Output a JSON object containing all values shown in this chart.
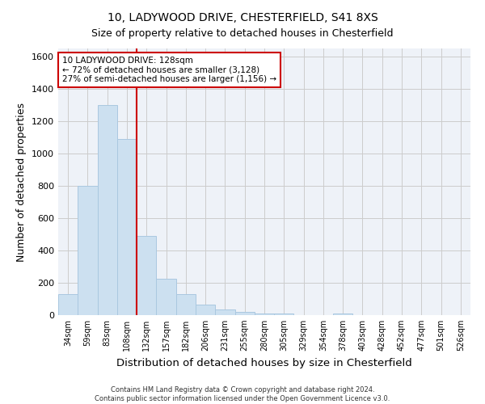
{
  "title_line1": "10, LADYWOOD DRIVE, CHESTERFIELD, S41 8XS",
  "title_line2": "Size of property relative to detached houses in Chesterfield",
  "xlabel": "Distribution of detached houses by size in Chesterfield",
  "ylabel": "Number of detached properties",
  "footnote": "Contains HM Land Registry data © Crown copyright and database right 2024.\nContains public sector information licensed under the Open Government Licence v3.0.",
  "bar_labels": [
    "34sqm",
    "59sqm",
    "83sqm",
    "108sqm",
    "132sqm",
    "157sqm",
    "182sqm",
    "206sqm",
    "231sqm",
    "255sqm",
    "280sqm",
    "305sqm",
    "329sqm",
    "354sqm",
    "378sqm",
    "403sqm",
    "428sqm",
    "452sqm",
    "477sqm",
    "501sqm",
    "526sqm"
  ],
  "bar_values": [
    130,
    800,
    1300,
    1090,
    490,
    225,
    130,
    65,
    35,
    22,
    12,
    12,
    0,
    0,
    12,
    0,
    0,
    0,
    0,
    0,
    0
  ],
  "bar_color": "#cce0f0",
  "bar_edge_color": "#aac8e0",
  "vline_x": 3.5,
  "vline_color": "#cc0000",
  "annotation_text": "10 LADYWOOD DRIVE: 128sqm\n← 72% of detached houses are smaller (3,128)\n27% of semi-detached houses are larger (1,156) →",
  "annotation_box_color": "white",
  "annotation_box_edge_color": "#cc0000",
  "ylim": [
    0,
    1650
  ],
  "yticks": [
    0,
    200,
    400,
    600,
    800,
    1000,
    1200,
    1400,
    1600
  ],
  "grid_color": "#cccccc",
  "bg_color": "#eef2f8",
  "title_fontsize": 10,
  "subtitle_fontsize": 9,
  "axis_label_fontsize": 9,
  "tick_fontsize": 8,
  "annotation_fontsize": 7.5,
  "footnote_fontsize": 6
}
